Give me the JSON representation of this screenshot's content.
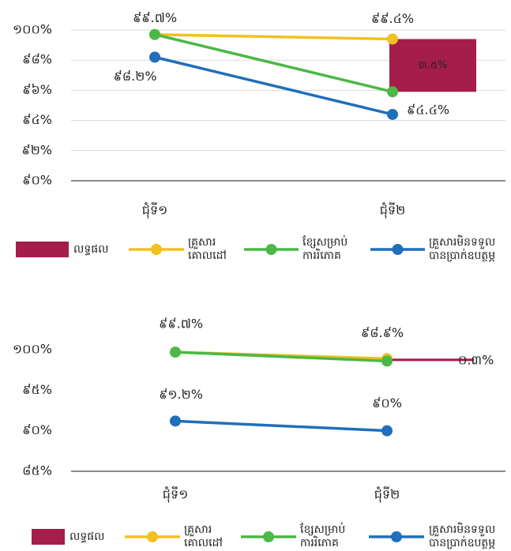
{
  "chart_data": [
    {
      "type": "line",
      "categories": [
        "ជុំទី១",
        "ជុំទី២"
      ],
      "ylim": [
        90,
        100
      ],
      "yticks": [
        {
          "value": 90,
          "label": "៩០%"
        },
        {
          "value": 92,
          "label": "៩២%"
        },
        {
          "value": 94,
          "label": "៩៤%"
        },
        {
          "value": 96,
          "label": "៩៦%"
        },
        {
          "value": 98,
          "label": "៩៨%"
        },
        {
          "value": 100,
          "label": "១០០%"
        }
      ],
      "grid": true,
      "series": [
        {
          "name": "លទ្ធផល",
          "type": "bar",
          "color": "#a51d4a",
          "values": [
            null,
            3.5
          ],
          "value_labels": [
            null,
            "៣.៥%"
          ]
        },
        {
          "name": "គ្រួសារគោលដៅ",
          "color": "#f2c01f",
          "values": [
            99.7,
            99.4
          ],
          "value_labels": [
            "៩៩.៧%",
            "៩៩.៤%"
          ]
        },
        {
          "name": "ខ្សែសម្រាប់ការរិភោគ",
          "color": "#4cb847",
          "values": [
            99.7,
            95.9
          ]
        },
        {
          "name": "គ្រួសារមិនទទួលបានប្រាក់ឧបត្ថម្ភ",
          "color": "#1f6fba",
          "values": [
            98.2,
            94.4
          ],
          "value_labels": [
            "៩៨.២%",
            "៩៤.៤%"
          ]
        }
      ]
    },
    {
      "type": "line",
      "categories": [
        "ជុំទី១",
        "ជុំទី២"
      ],
      "ylim": [
        85,
        100
      ],
      "yticks": [
        {
          "value": 85,
          "label": "៨៥%"
        },
        {
          "value": 90,
          "label": "៩០%"
        },
        {
          "value": 95,
          "label": "៩៥%"
        },
        {
          "value": 100,
          "label": "១០០%"
        }
      ],
      "grid": false,
      "series": [
        {
          "name": "លទ្ធផល",
          "type": "bar",
          "color": "#a51d4a",
          "values": [
            null,
            0.3
          ],
          "value_labels": [
            null,
            "០.៣%"
          ]
        },
        {
          "name": "គ្រួសារគោលដៅ",
          "color": "#f2c01f",
          "values": [
            99.7,
            98.9
          ],
          "value_labels": [
            "៩៩.៧%",
            "៩៨.៩%"
          ]
        },
        {
          "name": "ខ្សែសម្រាប់ការរិភោគ",
          "color": "#4cb847",
          "values": [
            99.7,
            98.6
          ]
        },
        {
          "name": "គ្រួសារមិនទទួលបានប្រាក់ឧបត្ថម្ភ",
          "color": "#1f6fba",
          "values": [
            91.2,
            90
          ],
          "value_labels": [
            "៩១.២%",
            "៩០%"
          ]
        }
      ]
    }
  ]
}
